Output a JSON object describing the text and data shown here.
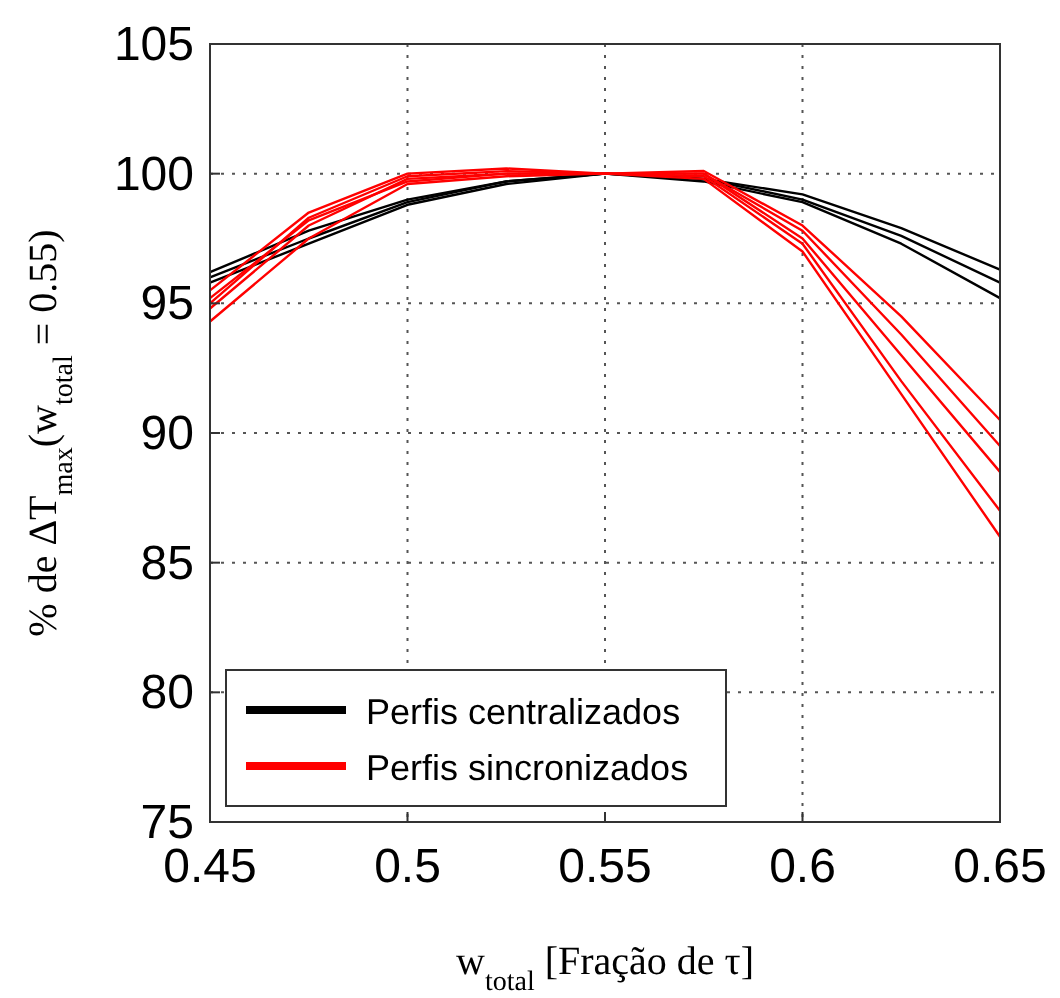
{
  "chart_data": {
    "type": "line",
    "xlabel": "w$_{total}$ [Fração de τ]",
    "ylabel": "% de ΔT$_{max}$(w$_{total}$ = 0.55)",
    "x": [
      0.45,
      0.475,
      0.5,
      0.525,
      0.55,
      0.575,
      0.6,
      0.625,
      0.65
    ],
    "xlim": [
      0.45,
      0.65
    ],
    "xticks": [
      0.45,
      0.5,
      0.55,
      0.6,
      0.65
    ],
    "ylim": [
      75,
      105
    ],
    "yticks": [
      75,
      80,
      85,
      90,
      95,
      100,
      105
    ],
    "grid": true,
    "legend": "bottom left",
    "series": [
      {
        "name": "Perfis centralizados",
        "color": "#000000",
        "values": [
          96.2,
          97.8,
          99.0,
          99.7,
          100,
          99.8,
          99.2,
          97.9,
          96.3
        ]
      },
      {
        "color": "#000000",
        "values": [
          96.0,
          97.5,
          98.9,
          99.7,
          100,
          99.8,
          99.0,
          97.6,
          95.8
        ]
      },
      {
        "color": "#000000",
        "values": [
          95.8,
          97.3,
          98.8,
          99.6,
          100,
          99.7,
          98.9,
          97.3,
          95.2
        ]
      },
      {
        "name": "Perfis sincronizados",
        "color": "#ff0000",
        "values": [
          95.5,
          98.5,
          100.0,
          100.2,
          100,
          100.1,
          98.0,
          94.5,
          90.5
        ]
      },
      {
        "color": "#ff0000",
        "values": [
          95.0,
          98.3,
          99.9,
          100.1,
          100,
          100.0,
          97.5,
          93.0,
          88.5
        ]
      },
      {
        "color": "#ff0000",
        "values": [
          94.8,
          98.0,
          99.8,
          100.0,
          100,
          99.9,
          97.3,
          92.0,
          87.0
        ]
      },
      {
        "color": "#ff0000",
        "values": [
          94.3,
          97.5,
          99.6,
          99.9,
          100,
          99.8,
          97.0,
          91.5,
          86.0
        ]
      },
      {
        "color": "#ff0000",
        "values": [
          95.2,
          98.2,
          99.7,
          100.0,
          100,
          100.0,
          97.8,
          93.8,
          89.5
        ]
      }
    ]
  }
}
